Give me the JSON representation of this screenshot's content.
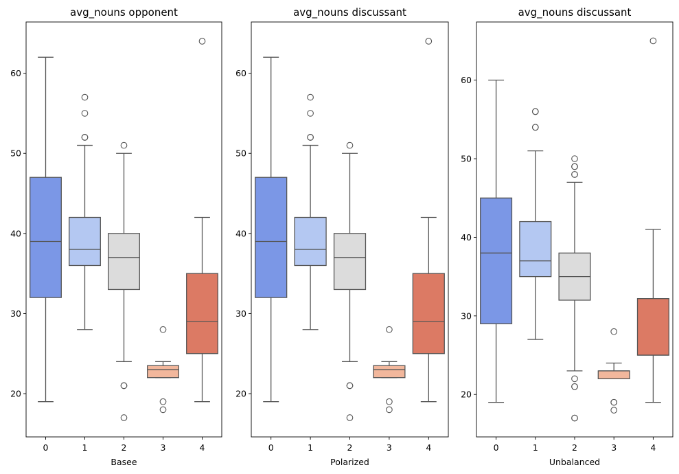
{
  "chart_data": [
    {
      "type": "box",
      "title": "avg_nouns opponent",
      "xlabel": "Basee",
      "ylabel": "",
      "categories": [
        "0",
        "1",
        "2",
        "3",
        "4"
      ],
      "yticks": [
        20,
        30,
        40,
        50,
        60
      ],
      "ylim": [
        14.6,
        66.4
      ],
      "colors": [
        "#7b97e6",
        "#b4c8f2",
        "#dcdcdc",
        "#f2b79c",
        "#dc7a64"
      ],
      "boxes": [
        {
          "category": "0",
          "whislo": 19,
          "q1": 32,
          "med": 39,
          "q3": 47,
          "whishi": 62,
          "fliers": []
        },
        {
          "category": "1",
          "whislo": 28,
          "q1": 36,
          "med": 38,
          "q3": 42,
          "whishi": 51,
          "fliers": [
            52,
            52,
            55,
            57
          ]
        },
        {
          "category": "2",
          "whislo": 24,
          "q1": 33,
          "med": 37,
          "q3": 40,
          "whishi": 50,
          "fliers": [
            21,
            21,
            17,
            51
          ]
        },
        {
          "category": "3",
          "whislo": 22,
          "q1": 22,
          "med": 23,
          "q3": 23.5,
          "whishi": 24,
          "fliers": [
            28,
            19,
            18
          ]
        },
        {
          "category": "4",
          "whislo": 19,
          "q1": 25,
          "med": 29,
          "q3": 35,
          "whishi": 42,
          "fliers": [
            64
          ]
        }
      ]
    },
    {
      "type": "box",
      "title": "avg_nouns discussant",
      "xlabel": "Polarized",
      "ylabel": "",
      "categories": [
        "0",
        "1",
        "2",
        "3",
        "4"
      ],
      "yticks": [
        20,
        30,
        40,
        50,
        60
      ],
      "ylim": [
        14.6,
        66.4
      ],
      "colors": [
        "#7b97e6",
        "#b4c8f2",
        "#dcdcdc",
        "#f2b79c",
        "#dc7a64"
      ],
      "boxes": [
        {
          "category": "0",
          "whislo": 19,
          "q1": 32,
          "med": 39,
          "q3": 47,
          "whishi": 62,
          "fliers": []
        },
        {
          "category": "1",
          "whislo": 28,
          "q1": 36,
          "med": 38,
          "q3": 42,
          "whishi": 51,
          "fliers": [
            52,
            52,
            55,
            57
          ]
        },
        {
          "category": "2",
          "whislo": 24,
          "q1": 33,
          "med": 37,
          "q3": 40,
          "whishi": 50,
          "fliers": [
            21,
            21,
            17,
            51
          ]
        },
        {
          "category": "3",
          "whislo": 22,
          "q1": 22,
          "med": 23,
          "q3": 23.5,
          "whishi": 24,
          "fliers": [
            28,
            19,
            18
          ]
        },
        {
          "category": "4",
          "whislo": 19,
          "q1": 25,
          "med": 29,
          "q3": 35,
          "whishi": 42,
          "fliers": [
            64
          ]
        }
      ]
    },
    {
      "type": "box",
      "title": "avg_nouns discussant",
      "xlabel": "Unbalanced",
      "ylabel": "",
      "categories": [
        "0",
        "1",
        "2",
        "3",
        "4"
      ],
      "yticks": [
        20,
        30,
        40,
        50,
        60
      ],
      "ylim": [
        14.6,
        67.4
      ],
      "colors": [
        "#7b97e6",
        "#b4c8f2",
        "#dcdcdc",
        "#f2b79c",
        "#dc7a64"
      ],
      "boxes": [
        {
          "category": "0",
          "whislo": 19,
          "q1": 29,
          "med": 38,
          "q3": 45,
          "whishi": 60,
          "fliers": []
        },
        {
          "category": "1",
          "whislo": 27,
          "q1": 35,
          "med": 37,
          "q3": 42,
          "whishi": 51,
          "fliers": [
            54,
            54,
            56,
            56
          ]
        },
        {
          "category": "2",
          "whislo": 23,
          "q1": 32,
          "med": 35,
          "q3": 38,
          "whishi": 47,
          "fliers": [
            48,
            48,
            49,
            49,
            50,
            22,
            21,
            21,
            17,
            17
          ]
        },
        {
          "category": "3",
          "whislo": 22,
          "q1": 22,
          "med": 23,
          "q3": 23,
          "whishi": 24,
          "fliers": [
            28,
            19,
            19,
            18
          ]
        },
        {
          "category": "4",
          "whislo": 19,
          "q1": 25,
          "med": 25,
          "q3": 32.2,
          "whishi": 41,
          "fliers": [
            65
          ]
        }
      ]
    }
  ]
}
